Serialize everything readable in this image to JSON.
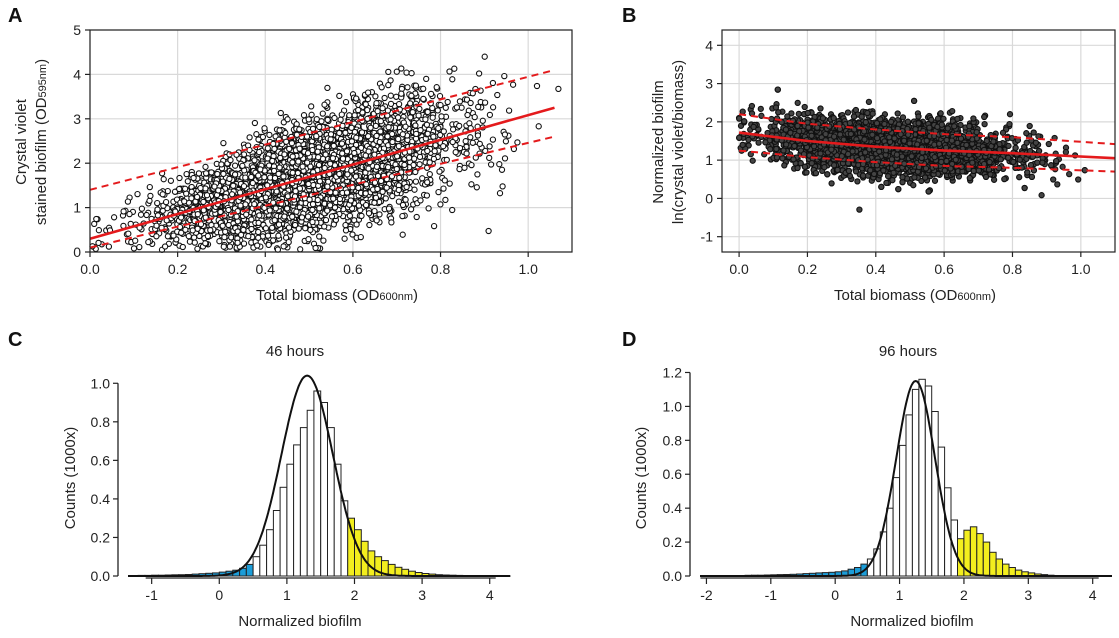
{
  "panel_labels": [
    "A",
    "B",
    "C",
    "D"
  ],
  "chart_data": [
    {
      "panel": "A",
      "type": "scatter",
      "xlabel_main": "Total biomass (OD",
      "xlabel_sub": "600nm",
      "xlabel_close": ")",
      "ylabel_line1": "Crystal violet",
      "ylabel_line2_main": "stained biofilm (OD",
      "ylabel_line2_sub": "595nm",
      "ylabel_line2_close": ")",
      "xlim": [
        0,
        1.1
      ],
      "ylim": [
        0,
        5
      ],
      "xticks": [
        0.0,
        0.2,
        0.4,
        0.6,
        0.8,
        1.0
      ],
      "xtick_labels": [
        "0.0",
        "0.2",
        "0.4",
        "0.6",
        "0.8",
        "1.0"
      ],
      "yticks": [
        0,
        1,
        2,
        3,
        4,
        5
      ],
      "ytick_labels": [
        "0",
        "1",
        "2",
        "3",
        "4",
        "5"
      ],
      "grid": true,
      "fit": {
        "x": [
          0.0,
          1.06
        ],
        "y": [
          0.3,
          3.25
        ],
        "color": "#e41a1c"
      },
      "band_upper": {
        "x": [
          0.0,
          1.06
        ],
        "y": [
          1.4,
          4.1
        ],
        "color": "#e41a1c"
      },
      "band_lower": {
        "x": [
          0.0,
          1.06
        ],
        "y": [
          0.1,
          2.6
        ],
        "color": "#e41a1c"
      },
      "n_points_approx": 4000,
      "x_mean": 0.5,
      "x_sd": 0.16,
      "y_noise_sd": 0.55,
      "saturated_y": 5
    },
    {
      "panel": "B",
      "type": "scatter",
      "xlabel_main": "Total biomass (OD",
      "xlabel_sub": "600nm",
      "xlabel_close": ")",
      "ylabel_line1": "Normalized biofilm",
      "ylabel_line2": "ln(crystal violet/biomass)",
      "xlim": [
        -0.05,
        1.1
      ],
      "ylim": [
        -1.4,
        4.4
      ],
      "xticks": [
        0.0,
        0.2,
        0.4,
        0.6,
        0.8,
        1.0
      ],
      "xtick_labels": [
        "0.0",
        "0.2",
        "0.4",
        "0.6",
        "0.8",
        "1.0"
      ],
      "yticks": [
        -1,
        0,
        1,
        2,
        3,
        4
      ],
      "ytick_labels": [
        "-1",
        "0",
        "1",
        "2",
        "3",
        "4"
      ],
      "grid": true,
      "fit": {
        "x": [
          0.0,
          0.2,
          0.4,
          0.6,
          0.8,
          1.1
        ],
        "y": [
          1.72,
          1.5,
          1.35,
          1.25,
          1.18,
          1.05
        ],
        "color": "#e41a1c"
      },
      "band_upper": {
        "x": [
          0.0,
          0.2,
          0.4,
          0.6,
          0.8,
          1.1
        ],
        "y": [
          2.2,
          1.95,
          1.8,
          1.68,
          1.6,
          1.42
        ],
        "color": "#e41a1c"
      },
      "band_lower": {
        "x": [
          0.0,
          0.2,
          0.4,
          0.6,
          0.8,
          1.1
        ],
        "y": [
          1.25,
          1.08,
          0.95,
          0.85,
          0.8,
          0.7
        ],
        "color": "#e41a1c"
      },
      "n_points_approx": 4000,
      "x_mean": 0.45,
      "x_sd": 0.17,
      "y_noise_sd": 0.35
    },
    {
      "panel": "C",
      "type": "bar",
      "title": "46 hours",
      "xlabel": "Normalized biofilm",
      "ylabel": "Counts (1000x)",
      "xlim": [
        -1.35,
        4.3
      ],
      "ylim": [
        0,
        1.1
      ],
      "xticks": [
        -1,
        0,
        1,
        2,
        3,
        4
      ],
      "xtick_labels": [
        "-1",
        "0",
        "1",
        "2",
        "3",
        "4"
      ],
      "yticks": [
        0,
        0.2,
        0.4,
        0.6,
        0.8,
        1.0
      ],
      "ytick_labels": [
        "0.0",
        "0.2",
        "0.4",
        "0.6",
        "0.8",
        "1.0"
      ],
      "bin_width": 0.1,
      "bin_start": -1.3,
      "values": [
        0.002,
        0.003,
        0.003,
        0.004,
        0.004,
        0.005,
        0.006,
        0.007,
        0.008,
        0.01,
        0.012,
        0.014,
        0.016,
        0.02,
        0.025,
        0.03,
        0.04,
        0.06,
        0.1,
        0.16,
        0.24,
        0.34,
        0.46,
        0.58,
        0.68,
        0.77,
        0.86,
        0.96,
        0.9,
        0.77,
        0.58,
        0.39,
        0.3,
        0.24,
        0.18,
        0.13,
        0.1,
        0.08,
        0.06,
        0.045,
        0.035,
        0.025,
        0.018,
        0.013,
        0.01,
        0.007,
        0.005,
        0.004,
        0.003,
        0.002,
        0.002,
        0.002,
        0.002,
        0.001,
        0.001,
        0.001
      ],
      "low_color": "#1b9dd9",
      "high_color": "#f3ee1e",
      "mid_color": "#ffffff",
      "low_threshold": 0.5,
      "high_threshold": 1.85,
      "fit_curve": {
        "mean": 1.3,
        "sd": 0.38,
        "peak": 1.04
      }
    },
    {
      "panel": "D",
      "type": "bar",
      "title": "96 hours",
      "xlabel": "Normalized biofilm",
      "ylabel": "Counts (1000x)",
      "xlim": [
        -2.1,
        4.3
      ],
      "ylim": [
        0,
        1.25
      ],
      "xticks": [
        -2,
        -1,
        0,
        1,
        2,
        3,
        4
      ],
      "xtick_labels": [
        "-2",
        "-1",
        "0",
        "1",
        "2",
        "3",
        "4"
      ],
      "yticks": [
        0,
        0.2,
        0.4,
        0.6,
        0.8,
        1.0,
        1.2
      ],
      "ytick_labels": [
        "0.0",
        "0.2",
        "0.4",
        "0.6",
        "0.8",
        "1.0",
        "1.2"
      ],
      "bin_width": 0.1,
      "bin_start": -1.8,
      "values": [
        0.002,
        0.002,
        0.003,
        0.003,
        0.004,
        0.005,
        0.005,
        0.006,
        0.007,
        0.008,
        0.009,
        0.01,
        0.012,
        0.014,
        0.016,
        0.018,
        0.02,
        0.022,
        0.025,
        0.03,
        0.04,
        0.05,
        0.07,
        0.1,
        0.16,
        0.26,
        0.4,
        0.58,
        0.77,
        0.95,
        1.1,
        1.16,
        1.12,
        0.97,
        0.76,
        0.52,
        0.33,
        0.22,
        0.27,
        0.29,
        0.25,
        0.2,
        0.14,
        0.1,
        0.07,
        0.05,
        0.035,
        0.025,
        0.018,
        0.012,
        0.008,
        0.005,
        0.003,
        0.002,
        0.002,
        0.001,
        0.001,
        0.001
      ],
      "low_color": "#1b9dd9",
      "high_color": "#f3ee1e",
      "mid_color": "#ffffff",
      "low_threshold": 0.5,
      "high_threshold": 1.85,
      "fit_curve": {
        "mean": 1.25,
        "sd": 0.3,
        "peak": 1.15
      }
    }
  ]
}
